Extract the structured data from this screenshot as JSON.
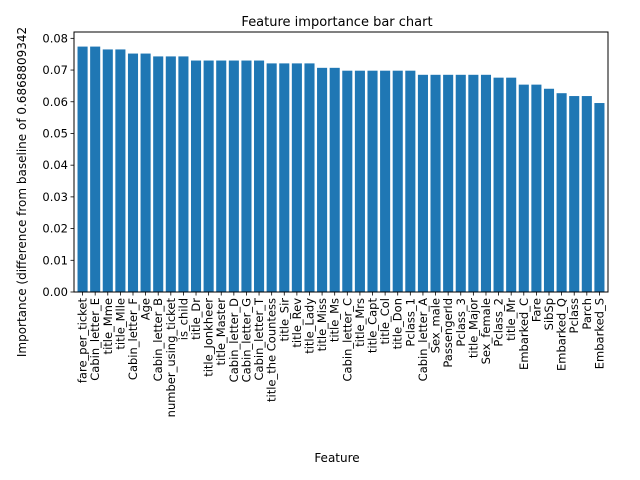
{
  "chart_data": {
    "type": "bar",
    "title": "Feature importance bar chart",
    "xlabel": "Feature",
    "ylabel": "Importance (difference from baseline of 0.6868809342",
    "ylim": [
      0,
      0.082
    ],
    "yticks": [
      "0.00",
      "0.01",
      "0.02",
      "0.03",
      "0.04",
      "0.05",
      "0.06",
      "0.07",
      "0.08"
    ],
    "grid": false,
    "bar_color": "#1f77b4",
    "categories": [
      "fare_per_ticket",
      "Cabin_letter_E",
      "title_Mme",
      "title_Mlle",
      "Cabin_letter_F",
      "Age",
      "Cabin_letter_B",
      "number_using_ticket",
      "is_child",
      "title_Dr",
      "title_Jonkheer",
      "title_Master",
      "Cabin_letter_D",
      "Cabin_letter_G",
      "Cabin_letter_T",
      "title_the Countess",
      "title_Sir",
      "title_Rev",
      "title_Lady",
      "title_Miss",
      "title_Ms",
      "Cabin_letter_C",
      "title_Mrs",
      "title_Capt",
      "title_Col",
      "title_Don",
      "Pclass_1",
      "Cabin_letter_A",
      "Sex_male",
      "PassengerId",
      "Pclass_3",
      "title_Major",
      "Sex_female",
      "Pclass_2",
      "title_Mr",
      "Embarked_C",
      "Fare",
      "SibSp",
      "Embarked_Q",
      "Pclass",
      "Parch",
      "Embarked_S"
    ],
    "values": [
      0.0774,
      0.0774,
      0.0765,
      0.0765,
      0.0752,
      0.0752,
      0.0743,
      0.0743,
      0.0743,
      0.073,
      0.073,
      0.073,
      0.073,
      0.073,
      0.073,
      0.0721,
      0.0721,
      0.0721,
      0.0721,
      0.0707,
      0.0707,
      0.0698,
      0.0698,
      0.0698,
      0.0698,
      0.0698,
      0.0698,
      0.0685,
      0.0685,
      0.0685,
      0.0685,
      0.0685,
      0.0685,
      0.0676,
      0.0676,
      0.0654,
      0.0654,
      0.0641,
      0.0627,
      0.0618,
      0.0618,
      0.0596
    ]
  }
}
